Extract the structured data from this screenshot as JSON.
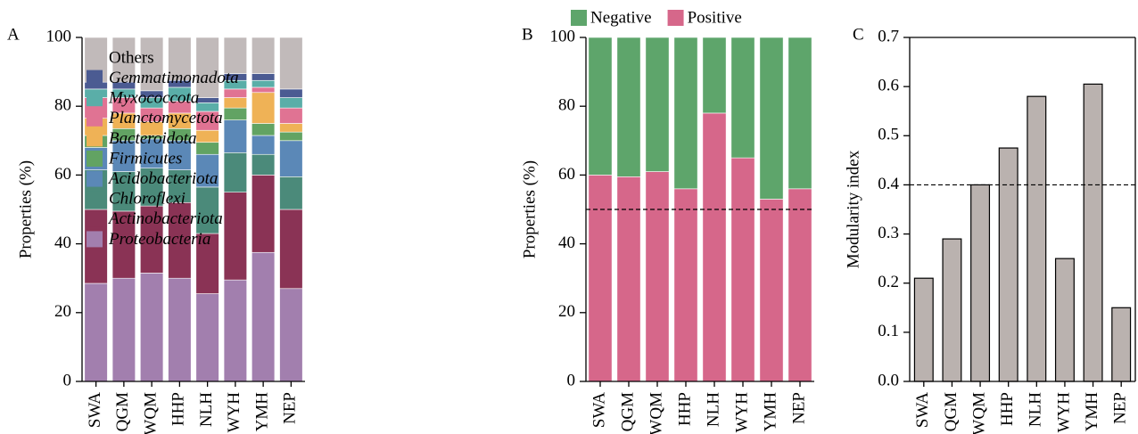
{
  "chart_data": [
    {
      "type": "bar",
      "panel": "A",
      "stacked": true,
      "legend": "right",
      "ylabel": "Properties (%)",
      "categories": [
        "SWA",
        "QGM",
        "WQM",
        "HHP",
        "NLH",
        "WYH",
        "YMH",
        "NEP"
      ],
      "ylim": [
        0,
        100
      ],
      "yticks": [
        0,
        20,
        40,
        60,
        80,
        100
      ],
      "series": [
        {
          "name": "Proteobacteria",
          "color": "#a27fae",
          "italic": true,
          "values": [
            28.5,
            30,
            31.5,
            30,
            25.5,
            29.5,
            37.5,
            27
          ]
        },
        {
          "name": "Actinobacteriota",
          "color": "#8a3355",
          "italic": true,
          "values": [
            21.5,
            19.5,
            19.5,
            22,
            17.5,
            25.5,
            22.5,
            23
          ]
        },
        {
          "name": "Chloroflexi",
          "color": "#4b8a7a",
          "italic": true,
          "values": [
            11.5,
            11.5,
            11,
            9.5,
            13.5,
            11.5,
            6,
            9.5
          ]
        },
        {
          "name": "Acidobacteriota",
          "color": "#5b88b7",
          "italic": true,
          "values": [
            6.5,
            9,
            8.5,
            8.5,
            9.5,
            9.5,
            5.5,
            10.5
          ]
        },
        {
          "name": "Firmicutes",
          "color": "#62a363",
          "italic": true,
          "values": [
            3.5,
            3.5,
            1,
            3.5,
            3.5,
            3.5,
            3.5,
            2.5
          ]
        },
        {
          "name": "Bacteroidota",
          "color": "#efb256",
          "italic": true,
          "values": [
            5,
            4.5,
            4,
            4.5,
            3.5,
            3,
            9,
            2.5
          ]
        },
        {
          "name": "Planctomycetota",
          "color": "#e07393",
          "italic": true,
          "values": [
            6,
            4.5,
            4,
            3.5,
            5.5,
            2.5,
            1.5,
            4.5
          ]
        },
        {
          "name": "Myxococcota",
          "color": "#5aaea8",
          "italic": true,
          "values": [
            2.5,
            2.5,
            3,
            4,
            2.5,
            2.5,
            2,
            3
          ]
        },
        {
          "name": "Gemmatimonadota",
          "color": "#4b5b92",
          "italic": true,
          "values": [
            2,
            2,
            2,
            2,
            1.5,
            2,
            2,
            2.5
          ]
        },
        {
          "name": "Others",
          "color": "#c1baba",
          "italic": false,
          "values": [
            13,
            13,
            15.5,
            12.5,
            17.5,
            10.5,
            10.5,
            15
          ]
        }
      ]
    },
    {
      "type": "bar",
      "panel": "B",
      "stacked": true,
      "legend": "top",
      "ylabel": "Properties (%)",
      "hline": 50,
      "categories": [
        "SWA",
        "QGM",
        "WQM",
        "HHP",
        "NLH",
        "WYH",
        "YMH",
        "NEP"
      ],
      "ylim": [
        0,
        100
      ],
      "yticks": [
        0,
        20,
        40,
        60,
        80,
        100
      ],
      "series": [
        {
          "name": "Positive",
          "color": "#d6678a",
          "values": [
            60,
            59.5,
            61,
            56,
            78,
            65,
            53,
            56
          ]
        },
        {
          "name": "Negative",
          "color": "#5ea56b",
          "values": [
            40,
            40.5,
            39,
            44,
            22,
            35,
            47,
            44
          ]
        }
      ]
    },
    {
      "type": "bar",
      "panel": "C",
      "ylabel": "Modularity index",
      "hline": 0.4,
      "color": "#bab2af",
      "edgecolor": "#000000",
      "frame": true,
      "categories": [
        "SWA",
        "QGM",
        "WQM",
        "HHP",
        "NLH",
        "WYH",
        "YMH",
        "NEP"
      ],
      "values": [
        0.21,
        0.29,
        0.4,
        0.475,
        0.58,
        0.25,
        0.605,
        0.15
      ],
      "ylim": [
        0,
        0.7
      ],
      "yticks": [
        {
          "value": 0,
          "label": "0.0"
        },
        0.1,
        0.2,
        0.3,
        0.4,
        0.5,
        0.6,
        0.7
      ]
    }
  ]
}
